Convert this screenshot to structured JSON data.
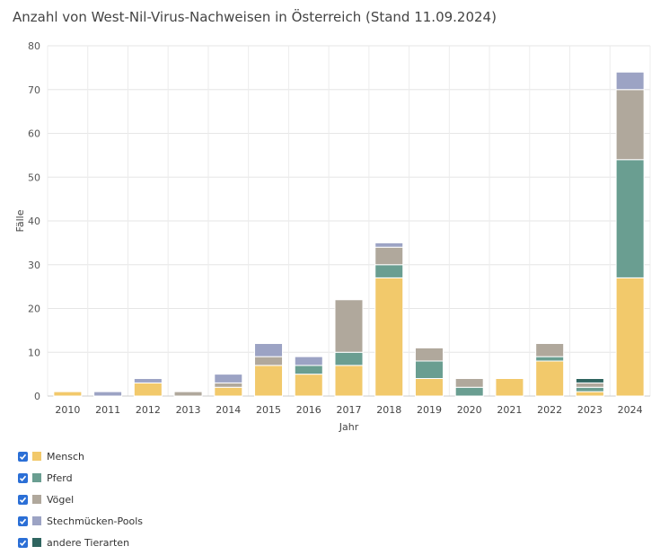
{
  "title": "Anzahl von West-Nil-Virus-Nachweisen in Österreich (Stand 11.09.2024)",
  "chart_data": {
    "type": "bar",
    "stacked": true,
    "categories": [
      "2010",
      "2011",
      "2012",
      "2013",
      "2014",
      "2015",
      "2016",
      "2017",
      "2018",
      "2019",
      "2020",
      "2021",
      "2022",
      "2023",
      "2024"
    ],
    "series": [
      {
        "name": "Mensch",
        "color": "#f2c96b",
        "values": [
          1,
          0,
          3,
          0,
          2,
          7,
          5,
          7,
          27,
          4,
          0,
          4,
          8,
          1,
          27
        ]
      },
      {
        "name": "Pferd",
        "color": "#6a9e91",
        "values": [
          0,
          0,
          0,
          0,
          0,
          0,
          2,
          3,
          3,
          4,
          2,
          0,
          1,
          1,
          27
        ]
      },
      {
        "name": "Vögel",
        "color": "#b0a89c",
        "values": [
          0,
          0,
          0,
          1,
          1,
          2,
          0,
          12,
          4,
          3,
          2,
          0,
          3,
          1,
          16
        ]
      },
      {
        "name": "Stechmücken-Pools",
        "color": "#9ca3c4",
        "values": [
          0,
          1,
          1,
          0,
          2,
          3,
          2,
          0,
          1,
          0,
          0,
          0,
          0,
          0,
          4
        ]
      },
      {
        "name": "andere Tierarten",
        "color": "#2f6560",
        "values": [
          0,
          0,
          0,
          0,
          0,
          0,
          0,
          0,
          0,
          0,
          0,
          0,
          0,
          1,
          0
        ]
      }
    ],
    "xlabel": "Jahr",
    "ylabel": "Fälle",
    "ylim": [
      0,
      80
    ],
    "yticks": [
      0,
      10,
      20,
      30,
      40,
      50,
      60,
      70,
      80
    ],
    "grid": true,
    "legend_position": "bottom-left"
  },
  "legend_items": [
    {
      "label": "Mensch",
      "color": "#f2c96b",
      "checked": true
    },
    {
      "label": "Pferd",
      "color": "#6a9e91",
      "checked": true
    },
    {
      "label": "Vögel",
      "color": "#b0a89c",
      "checked": true
    },
    {
      "label": "Stechmücken-Pools",
      "color": "#9ca3c4",
      "checked": true
    },
    {
      "label": "andere Tierarten",
      "color": "#2f6560",
      "checked": true
    }
  ]
}
